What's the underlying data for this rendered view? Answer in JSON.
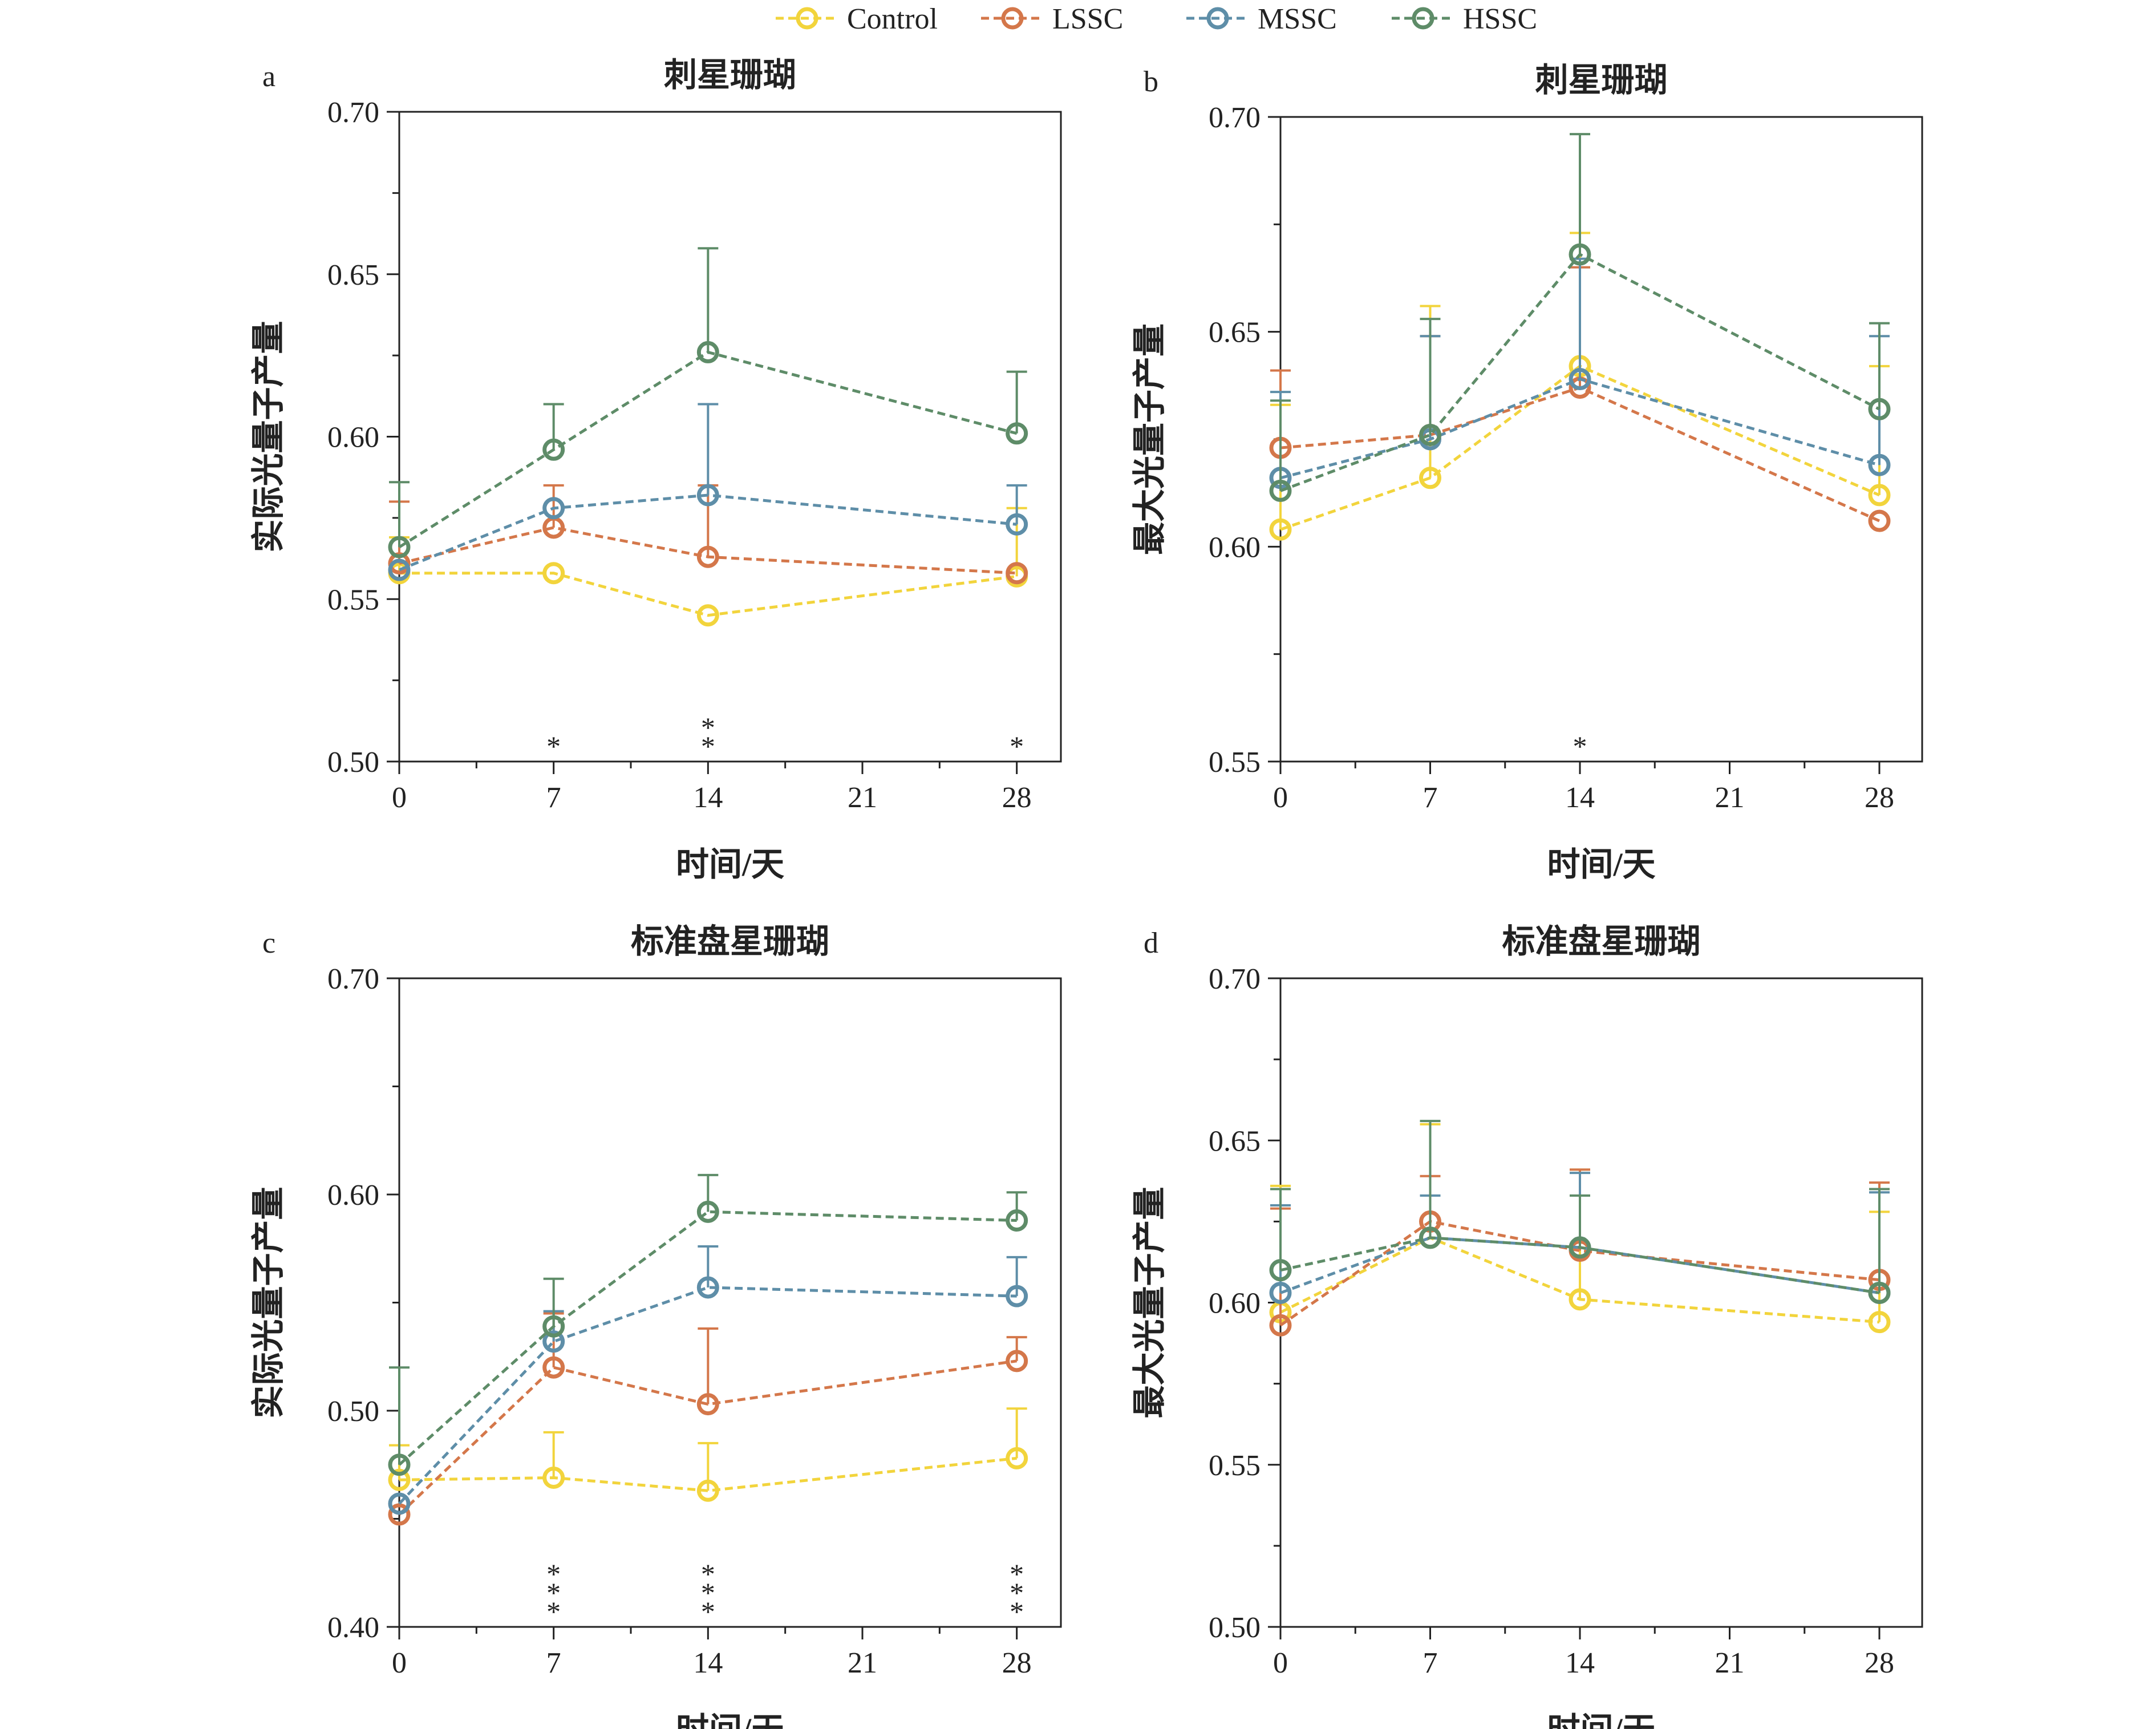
{
  "legend": {
    "placement": "top-center",
    "items": [
      {
        "label": "Control",
        "color": "#F2D43C"
      },
      {
        "label": "LSSC",
        "color": "#D4774A"
      },
      {
        "label": "MSSC",
        "color": "#5E8EA8"
      },
      {
        "label": "HSSC",
        "color": "#5E8C68"
      }
    ]
  },
  "chart_data": [
    {
      "panel_label": "a",
      "type": "line",
      "title": "刺星珊瑚",
      "xlabel": "时间/天",
      "ylabel": "实际光量子产量",
      "xlim": [
        0,
        30
      ],
      "ylim": [
        0.5,
        0.7
      ],
      "xticks": [
        "0",
        "7",
        "14",
        "21",
        "28"
      ],
      "yticks": [
        "0.50",
        "0.55",
        "0.60",
        "0.65",
        "0.70"
      ],
      "x": [
        0,
        7,
        14,
        28
      ],
      "series": [
        {
          "name": "Control",
          "values": [
            0.558,
            0.558,
            0.545,
            0.557
          ],
          "errors": [
            0.011,
            0.0,
            0.0,
            0.021
          ]
        },
        {
          "name": "LSSC",
          "values": [
            0.561,
            0.572,
            0.563,
            0.558
          ],
          "errors": [
            0.019,
            0.013,
            0.022,
            0.0
          ]
        },
        {
          "name": "MSSC",
          "values": [
            0.559,
            0.578,
            0.582,
            0.573
          ],
          "errors": [
            0.0,
            0.0,
            0.028,
            0.012
          ]
        },
        {
          "name": "HSSC",
          "values": [
            0.566,
            0.596,
            0.626,
            0.601
          ],
          "errors": [
            0.02,
            0.014,
            0.032,
            0.019
          ]
        }
      ],
      "significance": [
        {
          "x": 7,
          "marks": [
            {
              "text": "*",
              "series": "HSSC"
            }
          ]
        },
        {
          "x": 14,
          "marks": [
            {
              "text": "*",
              "series": "HSSC"
            },
            {
              "text": "*",
              "series": "MSSC"
            }
          ]
        },
        {
          "x": 28,
          "marks": [
            {
              "text": "*",
              "series": "HSSC"
            }
          ]
        }
      ]
    },
    {
      "panel_label": "b",
      "type": "line",
      "title": "刺星珊瑚",
      "xlabel": "时间/天",
      "ylabel": "最大光量子产量",
      "xlim": [
        0,
        30
      ],
      "ylim": [
        0.55,
        0.7
      ],
      "xticks": [
        "0",
        "7",
        "14",
        "21",
        "28"
      ],
      "yticks": [
        "0.55",
        "0.60",
        "0.65",
        "0.70"
      ],
      "x": [
        0,
        7,
        14,
        28
      ],
      "series": [
        {
          "name": "Control",
          "values": [
            0.604,
            0.616,
            0.642,
            0.612
          ],
          "errors": [
            0.029,
            0.04,
            0.031,
            0.03
          ]
        },
        {
          "name": "LSSC",
          "values": [
            0.623,
            0.626,
            0.637,
            0.606
          ],
          "errors": [
            0.018,
            0.023,
            0.028,
            0.0
          ]
        },
        {
          "name": "MSSC",
          "values": [
            0.616,
            0.625,
            0.639,
            0.619
          ],
          "errors": [
            0.02,
            0.024,
            0.028,
            0.03
          ]
        },
        {
          "name": "HSSC",
          "values": [
            0.613,
            0.626,
            0.668,
            0.632
          ],
          "errors": [
            0.021,
            0.027,
            0.028,
            0.02
          ]
        }
      ],
      "significance": [
        {
          "x": 14,
          "marks": [
            {
              "text": "*",
              "series": "HSSC"
            }
          ]
        }
      ]
    },
    {
      "panel_label": "c",
      "type": "line",
      "title": "标准盘星珊瑚",
      "xlabel": "时间/天",
      "ylabel": "实际光量子产量",
      "xlim": [
        0,
        30
      ],
      "ylim": [
        0.4,
        0.7
      ],
      "xticks": [
        "0",
        "7",
        "14",
        "21",
        "28"
      ],
      "yticks": [
        "0.40",
        "0.50",
        "0.60",
        "0.70"
      ],
      "x": [
        0,
        7,
        14,
        28
      ],
      "series": [
        {
          "name": "Control",
          "values": [
            0.468,
            0.469,
            0.463,
            0.478
          ],
          "errors": [
            0.016,
            0.021,
            0.022,
            0.023
          ]
        },
        {
          "name": "LSSC",
          "values": [
            0.452,
            0.52,
            0.503,
            0.523
          ],
          "errors": [
            0.0,
            0.025,
            0.035,
            0.011
          ]
        },
        {
          "name": "MSSC",
          "values": [
            0.457,
            0.532,
            0.557,
            0.553
          ],
          "errors": [
            0.0,
            0.014,
            0.019,
            0.018
          ]
        },
        {
          "name": "HSSC",
          "values": [
            0.475,
            0.539,
            0.592,
            0.588
          ],
          "errors": [
            0.045,
            0.022,
            0.017,
            0.013
          ]
        }
      ],
      "significance": [
        {
          "x": 7,
          "marks": [
            {
              "text": "*",
              "series": "HSSC"
            },
            {
              "text": "*",
              "series": "MSSC"
            },
            {
              "text": "*",
              "series": "LSSC"
            }
          ]
        },
        {
          "x": 14,
          "marks": [
            {
              "text": "*",
              "series": "HSSC"
            },
            {
              "text": "*",
              "series": "MSSC"
            },
            {
              "text": "*",
              "series": "LSSC"
            }
          ]
        },
        {
          "x": 28,
          "marks": [
            {
              "text": "*",
              "series": "HSSC"
            },
            {
              "text": "*",
              "series": "MSSC"
            },
            {
              "text": "*",
              "series": "LSSC"
            }
          ]
        }
      ]
    },
    {
      "panel_label": "d",
      "type": "line",
      "title": "标准盘星珊瑚",
      "xlabel": "时间/天",
      "ylabel": "最大光量子产量",
      "xlim": [
        0,
        30
      ],
      "ylim": [
        0.5,
        0.7
      ],
      "xticks": [
        "0",
        "7",
        "14",
        "21",
        "28"
      ],
      "yticks": [
        "0.50",
        "0.55",
        "0.60",
        "0.65",
        "0.70"
      ],
      "x": [
        0,
        7,
        14,
        28
      ],
      "series": [
        {
          "name": "Control",
          "values": [
            0.597,
            0.62,
            0.601,
            0.594
          ],
          "errors": [
            0.039,
            0.035,
            0.04,
            0.034
          ]
        },
        {
          "name": "LSSC",
          "values": [
            0.593,
            0.625,
            0.616,
            0.607
          ],
          "errors": [
            0.036,
            0.014,
            0.025,
            0.03
          ]
        },
        {
          "name": "MSSC",
          "values": [
            0.603,
            0.62,
            0.617,
            0.603
          ],
          "errors": [
            0.027,
            0.013,
            0.023,
            0.031
          ]
        },
        {
          "name": "HSSC",
          "values": [
            0.61,
            0.62,
            0.617,
            0.603
          ],
          "errors": [
            0.025,
            0.036,
            0.016,
            0.032
          ]
        }
      ],
      "significance": []
    }
  ]
}
